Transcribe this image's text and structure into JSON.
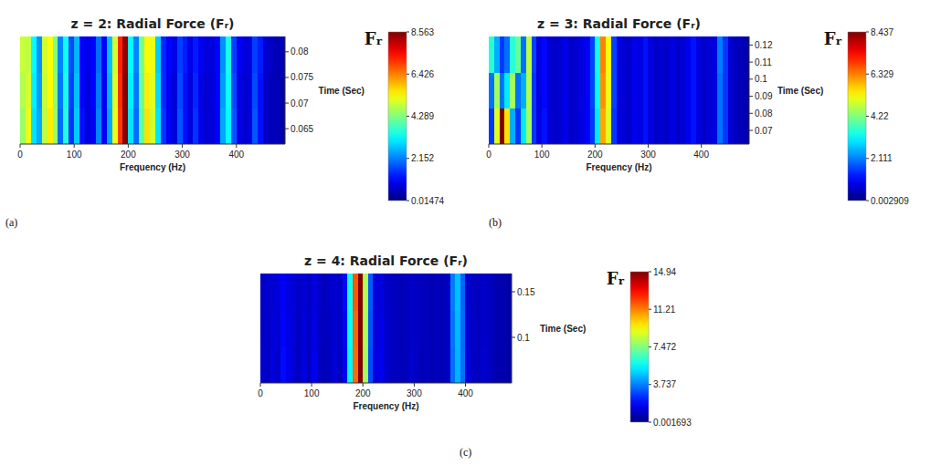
{
  "chart_data": [
    {
      "type": "heatmap",
      "title": "z = 2: Radial Force (Fᵣ)",
      "panel": "(a)",
      "x_label": "Frequency (Hz)",
      "y_label": "Time (Sec)",
      "xlim": [
        0,
        490
      ],
      "xticks": [
        0,
        100,
        200,
        300,
        400
      ],
      "ylim": [
        0.062,
        0.083
      ],
      "yticks": [
        0.065,
        0.07,
        0.075,
        0.08
      ],
      "x_bins": [
        0,
        10,
        20,
        30,
        40,
        50,
        60,
        70,
        80,
        90,
        100,
        110,
        120,
        130,
        140,
        150,
        160,
        170,
        180,
        190,
        200,
        210,
        220,
        230,
        240,
        250,
        260,
        270,
        280,
        290,
        300,
        310,
        320,
        330,
        340,
        350,
        360,
        370,
        380,
        390,
        400,
        410,
        420,
        430,
        440,
        450,
        460,
        470,
        480,
        490
      ],
      "y_bins": [
        0.062,
        0.069,
        0.076,
        0.083
      ],
      "cells": [
        [
          4.5,
          5.2,
          3.0,
          2.5,
          4.8,
          5.5,
          4.5,
          2.0,
          3.5,
          1.5,
          2.8,
          1.2,
          0.8,
          1.0,
          2.2,
          1.0,
          2.5,
          5.2,
          7.0,
          8.5,
          3.0,
          2.0,
          4.0,
          5.6,
          5.0,
          3.0,
          1.5,
          1.0,
          0.8,
          1.8,
          1.2,
          0.8,
          1.5,
          0.9,
          0.7,
          0.8,
          1.0,
          2.5,
          3.2,
          1.8,
          0.9,
          0.7,
          0.8,
          1.8,
          1.2,
          0.6,
          0.5,
          0.5,
          0.4
        ],
        [
          4.7,
          5.0,
          3.1,
          2.4,
          4.9,
          5.4,
          4.4,
          2.1,
          3.4,
          1.6,
          2.7,
          1.1,
          0.8,
          1.1,
          2.1,
          1.0,
          2.6,
          5.1,
          7.1,
          8.5,
          3.1,
          2.1,
          4.1,
          5.5,
          5.1,
          2.9,
          1.4,
          1.0,
          0.8,
          1.7,
          1.2,
          0.8,
          1.4,
          0.9,
          0.7,
          0.8,
          1.1,
          2.4,
          3.3,
          1.7,
          0.9,
          0.7,
          0.8,
          1.7,
          1.2,
          0.6,
          0.5,
          0.5,
          0.4
        ],
        [
          4.9,
          4.8,
          3.2,
          2.3,
          5.0,
          5.3,
          4.3,
          2.2,
          3.3,
          1.7,
          2.6,
          1.1,
          0.9,
          1.1,
          2.0,
          1.1,
          2.7,
          5.0,
          7.2,
          8.4,
          3.2,
          2.2,
          4.2,
          5.4,
          5.2,
          2.8,
          1.4,
          1.1,
          0.9,
          1.6,
          1.3,
          0.9,
          1.3,
          1.0,
          0.8,
          0.8,
          1.1,
          2.3,
          3.4,
          1.6,
          1.0,
          0.8,
          0.8,
          1.6,
          1.3,
          0.7,
          0.6,
          0.5,
          0.5
        ]
      ],
      "color_label": "Fᵣ",
      "color_range": [
        0.01474,
        8.563
      ],
      "color_ticks": [
        0.01474,
        2.152,
        4.289,
        6.426,
        8.563
      ]
    },
    {
      "type": "heatmap",
      "title": "z = 3: Radial Force (Fᵣ)",
      "panel": "(b)",
      "x_label": "Frequency (Hz)",
      "y_label": "Time (Sec)",
      "xlim": [
        0,
        490
      ],
      "xticks": [
        0,
        100,
        200,
        300,
        400
      ],
      "ylim": [
        0.062,
        0.125
      ],
      "yticks": [
        0.07,
        0.08,
        0.09,
        0.1,
        0.11,
        0.12
      ],
      "x_bins": [
        0,
        10,
        20,
        30,
        40,
        50,
        60,
        70,
        80,
        90,
        100,
        110,
        120,
        130,
        140,
        150,
        160,
        170,
        180,
        190,
        200,
        210,
        220,
        230,
        240,
        250,
        260,
        270,
        280,
        290,
        300,
        310,
        320,
        330,
        340,
        350,
        360,
        370,
        380,
        390,
        400,
        410,
        420,
        430,
        440,
        450,
        460,
        470,
        480,
        490
      ],
      "y_bins": [
        0.062,
        0.083,
        0.104,
        0.125
      ],
      "cells": [
        [
          1.5,
          5.0,
          8.4,
          5.5,
          2.5,
          1.5,
          3.0,
          4.5,
          1.5,
          0.8,
          1.2,
          0.7,
          0.6,
          0.7,
          0.9,
          0.6,
          0.7,
          0.8,
          1.0,
          1.5,
          3.0,
          6.0,
          5.0,
          1.5,
          0.8,
          0.7,
          0.6,
          0.9,
          0.8,
          1.2,
          0.8,
          0.6,
          0.7,
          0.6,
          0.8,
          0.6,
          0.7,
          0.9,
          1.2,
          0.8,
          0.6,
          0.7,
          0.8,
          2.0,
          1.5,
          0.7,
          0.5,
          0.5,
          0.4
        ],
        [
          2.0,
          4.5,
          2.0,
          3.0,
          4.5,
          2.0,
          2.5,
          4.6,
          1.5,
          0.8,
          1.1,
          0.7,
          0.6,
          0.7,
          0.9,
          0.6,
          0.7,
          0.8,
          1.0,
          1.6,
          3.2,
          6.2,
          5.1,
          1.6,
          0.8,
          0.7,
          0.6,
          0.9,
          0.8,
          1.2,
          0.8,
          0.6,
          0.7,
          0.6,
          0.8,
          0.6,
          0.7,
          0.9,
          1.2,
          0.8,
          0.6,
          0.7,
          0.8,
          2.0,
          1.5,
          0.7,
          0.5,
          0.5,
          0.4
        ],
        [
          3.5,
          2.5,
          1.5,
          2.0,
          3.5,
          4.0,
          2.0,
          4.7,
          1.6,
          0.8,
          1.1,
          0.7,
          0.6,
          0.7,
          0.9,
          0.6,
          0.7,
          0.8,
          1.0,
          1.6,
          3.3,
          6.3,
          5.2,
          1.6,
          0.8,
          0.7,
          0.6,
          0.9,
          0.8,
          1.2,
          0.8,
          0.6,
          0.7,
          0.6,
          0.8,
          0.6,
          0.7,
          0.9,
          1.2,
          0.8,
          0.6,
          0.7,
          0.8,
          2.1,
          1.5,
          0.7,
          0.5,
          0.5,
          0.4
        ]
      ],
      "color_label": "Fᵣ",
      "color_range": [
        0.002909,
        8.437
      ],
      "color_ticks": [
        0.002909,
        2.111,
        4.22,
        6.329,
        8.437
      ]
    },
    {
      "type": "heatmap",
      "title": "z = 4: Radial Force (Fᵣ)",
      "panel": "(c)",
      "x_label": "Frequency (Hz)",
      "y_label": "Time (Sec)",
      "xlim": [
        0,
        490
      ],
      "xticks": [
        0,
        100,
        200,
        300,
        400
      ],
      "ylim": [
        0.05,
        0.17
      ],
      "yticks": [
        0.1,
        0.15
      ],
      "x_bins": [
        0,
        10,
        20,
        30,
        40,
        50,
        60,
        70,
        80,
        90,
        100,
        110,
        120,
        130,
        140,
        150,
        160,
        170,
        180,
        190,
        200,
        210,
        220,
        230,
        240,
        250,
        260,
        270,
        280,
        290,
        300,
        310,
        320,
        330,
        340,
        350,
        360,
        370,
        380,
        390,
        400,
        410,
        420,
        430,
        440,
        450,
        460,
        470,
        480,
        490
      ],
      "y_bins": [
        0.05,
        0.09,
        0.13,
        0.17
      ],
      "cells": [
        [
          1.2,
          1.0,
          1.4,
          1.1,
          2.0,
          1.6,
          1.2,
          1.0,
          1.4,
          0.9,
          1.6,
          1.0,
          0.8,
          1.0,
          1.3,
          0.9,
          1.8,
          5.5,
          11.5,
          14.9,
          8.0,
          3.0,
          1.4,
          1.6,
          1.2,
          1.0,
          0.9,
          0.8,
          0.9,
          1.2,
          1.0,
          0.8,
          0.9,
          0.8,
          0.9,
          0.8,
          1.0,
          3.5,
          4.5,
          3.5,
          1.4,
          1.0,
          0.9,
          1.2,
          1.0,
          0.8,
          0.7,
          0.7,
          0.6
        ],
        [
          1.1,
          1.1,
          1.3,
          1.2,
          1.9,
          1.5,
          1.3,
          1.0,
          1.3,
          1.0,
          1.5,
          1.0,
          0.9,
          1.0,
          1.2,
          1.0,
          1.9,
          5.6,
          11.6,
          14.9,
          8.1,
          3.1,
          1.3,
          1.5,
          1.2,
          1.0,
          0.9,
          0.8,
          0.9,
          1.1,
          1.0,
          0.9,
          0.9,
          0.8,
          0.9,
          0.8,
          1.0,
          3.6,
          4.6,
          3.4,
          1.3,
          1.0,
          0.9,
          1.1,
          1.0,
          0.8,
          0.7,
          0.7,
          0.6
        ],
        [
          1.0,
          1.2,
          1.2,
          1.3,
          1.8,
          1.4,
          1.3,
          1.1,
          1.2,
          1.0,
          1.4,
          1.1,
          0.9,
          1.1,
          1.2,
          1.0,
          2.0,
          5.8,
          11.8,
          14.9,
          8.2,
          3.2,
          1.3,
          1.4,
          1.1,
          1.0,
          0.9,
          0.8,
          0.9,
          1.1,
          1.0,
          0.9,
          0.9,
          0.8,
          0.9,
          0.8,
          1.0,
          3.7,
          4.7,
          3.3,
          1.2,
          1.0,
          0.9,
          1.1,
          1.0,
          0.8,
          0.7,
          0.7,
          0.6
        ]
      ],
      "color_label": "Fᵣ",
      "color_range": [
        0.001693,
        14.94
      ],
      "color_ticks": [
        0.001693,
        3.737,
        7.472,
        11.21,
        14.94
      ]
    }
  ]
}
